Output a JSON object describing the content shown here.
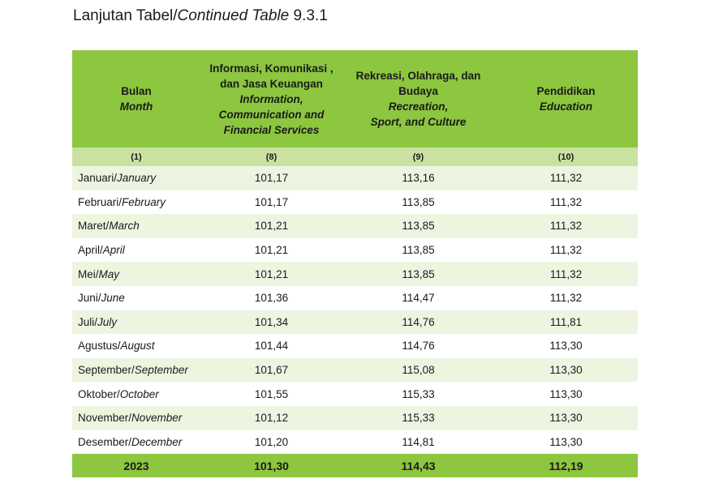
{
  "caption": {
    "prefix": "Lanjutan Tabel/",
    "italic": "Continued Table",
    "number": " 9.3.1"
  },
  "table": {
    "columns": [
      {
        "id_lines": [
          "Bulan"
        ],
        "en_lines": [
          "Month"
        ],
        "number": "(1)"
      },
      {
        "id_lines": [
          "Informasi, Komunikasi ,",
          "dan Jasa Keuangan"
        ],
        "en_lines": [
          "Information,",
          "Communication and",
          "Financial Services"
        ],
        "number": "(8)"
      },
      {
        "id_lines": [
          "Rekreasi, Olahraga, dan",
          "Budaya"
        ],
        "en_lines": [
          "Recreation,",
          "Sport, and Culture"
        ],
        "number": "(9)"
      },
      {
        "id_lines": [
          "Pendidikan"
        ],
        "en_lines": [
          "Education"
        ],
        "number": "(10)"
      }
    ],
    "rows": [
      {
        "month_id": "Januari/",
        "month_en": "January",
        "c8": "101,17",
        "c9": "113,16",
        "c10": "111,32"
      },
      {
        "month_id": "Februari/",
        "month_en": "February",
        "c8": "101,17",
        "c9": "113,85",
        "c10": "111,32"
      },
      {
        "month_id": "Maret/",
        "month_en": "March",
        "c8": "101,21",
        "c9": "113,85",
        "c10": "111,32"
      },
      {
        "month_id": "April/",
        "month_en": "April",
        "c8": "101,21",
        "c9": "113,85",
        "c10": "111,32"
      },
      {
        "month_id": "Mei/",
        "month_en": "May",
        "c8": "101,21",
        "c9": "113,85",
        "c10": "111,32"
      },
      {
        "month_id": "Juni/",
        "month_en": "June",
        "c8": "101,36",
        "c9": "114,47",
        "c10": "111,32"
      },
      {
        "month_id": "Juli/",
        "month_en": "July",
        "c8": "101,34",
        "c9": "114,76",
        "c10": "111,81"
      },
      {
        "month_id": "Agustus/",
        "month_en": "August",
        "c8": "101,44",
        "c9": "114,76",
        "c10": "113,30"
      },
      {
        "month_id": "September/",
        "month_en": "September",
        "c8": "101,67",
        "c9": "115,08",
        "c10": "113,30"
      },
      {
        "month_id": "Oktober/",
        "month_en": "October",
        "c8": "101,55",
        "c9": "115,33",
        "c10": "113,30"
      },
      {
        "month_id": "November/",
        "month_en": "November",
        "c8": "101,12",
        "c9": "115,33",
        "c10": "113,30"
      },
      {
        "month_id": "Desember/",
        "month_en": "December",
        "c8": "101,20",
        "c9": "114,81",
        "c10": "113,30"
      }
    ],
    "total": {
      "label": "2023",
      "c8": "101,30",
      "c9": "114,43",
      "c10": "112,19"
    }
  },
  "colors": {
    "header_green": "#8dc63f",
    "number_row_green": "#c9e2a1",
    "stripe_green": "#edf5e1"
  }
}
